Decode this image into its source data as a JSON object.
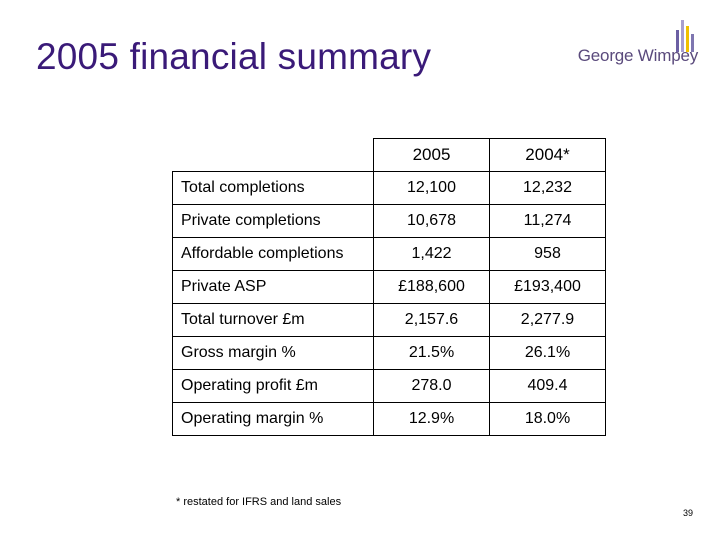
{
  "title": "2005 financial summary",
  "logo": {
    "text": "George Wimpey",
    "bar_colors": [
      "#6b5fa3",
      "#a89fcf",
      "#f0c000",
      "#7e76b0"
    ]
  },
  "table": {
    "columns": [
      "2005",
      "2004*"
    ],
    "rows": [
      {
        "label": "Total completions",
        "v2005": "12,100",
        "v2004": "12,232"
      },
      {
        "label": "Private completions",
        "v2005": "10,678",
        "v2004": "11,274"
      },
      {
        "label": "Affordable completions",
        "v2005": "1,422",
        "v2004": "958"
      },
      {
        "label": "Private ASP",
        "v2005": "£188,600",
        "v2004": "£193,400"
      },
      {
        "label": "Total turnover £m",
        "v2005": "2,157.6",
        "v2004": "2,277.9"
      },
      {
        "label": "Gross margin %",
        "v2005": "21.5%",
        "v2004": "26.1%"
      },
      {
        "label": "Operating profit £m",
        "v2005": "278.0",
        "v2004": "409.4"
      },
      {
        "label": "Operating margin %",
        "v2005": "12.9%",
        "v2004": "18.0%"
      }
    ]
  },
  "footnote": "* restated for IFRS and land sales",
  "page_number": "39"
}
